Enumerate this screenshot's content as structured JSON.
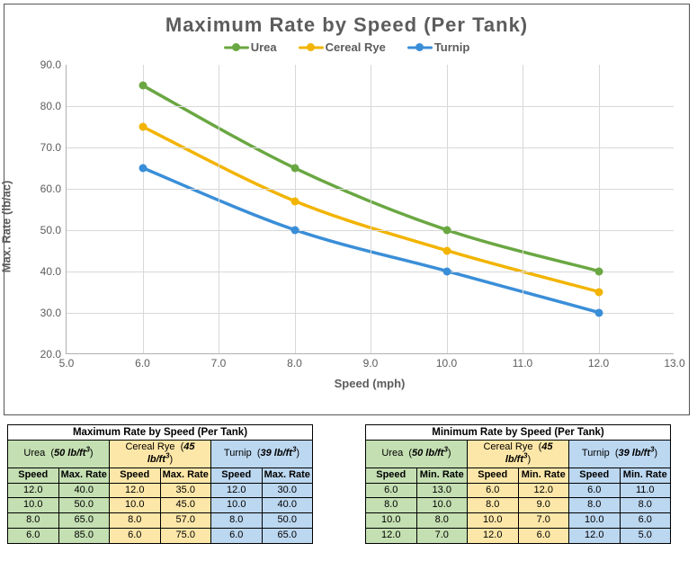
{
  "chart": {
    "title": "Maximum Rate by Speed (Per Tank)",
    "xlabel": "Speed (mph)",
    "ylabel": "Max. Rate (lb/ac)",
    "xlim": [
      5.0,
      13.0
    ],
    "ylim": [
      20.0,
      90.0
    ],
    "xtick_step": 1.0,
    "ytick_step": 10.0,
    "xtick_decimals": 1,
    "ytick_decimals": 1,
    "background_color": "#ffffff",
    "grid_color": "#d8d8d8",
    "axis_color": "#b0b0b0",
    "text_color": "#5c5c5c",
    "line_width": 3.5,
    "marker_size": 9,
    "series": [
      {
        "name": "Urea",
        "color": "#6aa742",
        "x": [
          6,
          8,
          10,
          12
        ],
        "y": [
          85,
          65,
          50,
          40
        ]
      },
      {
        "name": "Cereal Rye",
        "color": "#f2b400",
        "x": [
          6,
          8,
          10,
          12
        ],
        "y": [
          75,
          57,
          45,
          35
        ]
      },
      {
        "name": "Turnip",
        "color": "#3a8ed8",
        "x": [
          6,
          8,
          10,
          12
        ],
        "y": [
          65,
          50,
          40,
          30
        ]
      }
    ]
  },
  "tables": {
    "max": {
      "title": "Maximum Rate by Speed (Per Tank)",
      "value_header": "Max. Rate",
      "materials": [
        {
          "name": "Urea",
          "density": "50 lb/ft",
          "color": "#c4dfb2",
          "rows": [
            [
              12.0,
              40.0
            ],
            [
              10.0,
              50.0
            ],
            [
              8.0,
              65.0
            ],
            [
              6.0,
              85.0
            ]
          ]
        },
        {
          "name": "Cereal Rye",
          "density": "45 lb/ft",
          "color": "#fde7a8",
          "rows": [
            [
              12.0,
              35.0
            ],
            [
              10.0,
              45.0
            ],
            [
              8.0,
              57.0
            ],
            [
              6.0,
              75.0
            ]
          ]
        },
        {
          "name": "Turnip",
          "density": "39 lb/ft",
          "color": "#bcd7f0",
          "rows": [
            [
              12.0,
              30.0
            ],
            [
              10.0,
              40.0
            ],
            [
              8.0,
              50.0
            ],
            [
              6.0,
              65.0
            ]
          ]
        }
      ]
    },
    "min": {
      "title": "Minimum Rate by Speed (Per Tank)",
      "value_header": "Min. Rate",
      "materials": [
        {
          "name": "Urea",
          "density": "50 lb/ft",
          "color": "#c4dfb2",
          "rows": [
            [
              6.0,
              13.0
            ],
            [
              8.0,
              10.0
            ],
            [
              10.0,
              8.0
            ],
            [
              12.0,
              7.0
            ]
          ]
        },
        {
          "name": "Cereal Rye",
          "density": "45 lb/ft",
          "color": "#fde7a8",
          "rows": [
            [
              6.0,
              12.0
            ],
            [
              8.0,
              9.0
            ],
            [
              10.0,
              7.0
            ],
            [
              12.0,
              6.0
            ]
          ]
        },
        {
          "name": "Turnip",
          "density": "39 lb/ft",
          "color": "#bcd7f0",
          "rows": [
            [
              6.0,
              11.0
            ],
            [
              8.0,
              8.0
            ],
            [
              10.0,
              6.0
            ],
            [
              12.0,
              5.0
            ]
          ]
        }
      ]
    }
  }
}
